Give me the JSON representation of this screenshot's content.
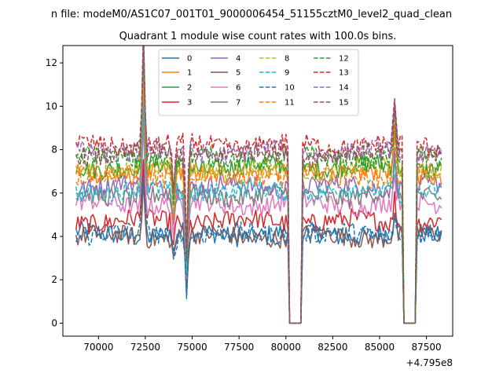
{
  "figure": {
    "suptitle": "n file: modeM0/AS1C07_001T01_9000006454_51155cztM0_level2_quad_clean"
  },
  "chart_data": {
    "type": "line",
    "title": "Quadrant 1 module wise count rates with 100.0s bins.",
    "xlabel": "",
    "ylabel": "",
    "x_offset_label": "+4.795e8",
    "xlim": [
      68100,
      88900
    ],
    "ylim": [
      -0.6,
      12.8
    ],
    "x_ticks": [
      70000,
      72500,
      75000,
      77500,
      80000,
      82500,
      85000,
      87500
    ],
    "y_ticks": [
      0,
      2,
      4,
      6,
      8,
      10,
      12
    ],
    "grid": false,
    "legend_placement": "upper-center",
    "legend_columns": 4,
    "x_start": 68800,
    "x_end": 88300,
    "bin_width": 100,
    "gaps": [
      {
        "from": 80200,
        "to": 80800
      },
      {
        "from": 86300,
        "to": 86900
      }
    ],
    "features": [
      {
        "x": 72400,
        "shift": 4.0
      },
      {
        "x": 74000,
        "shift": -1.5
      },
      {
        "x": 74700,
        "shift": -3.5
      },
      {
        "x": 85800,
        "shift": 1.5
      }
    ],
    "series": [
      {
        "name": "0",
        "color": "#1f77b4",
        "style": "solid",
        "level": 4.1
      },
      {
        "name": "1",
        "color": "#ff7f0e",
        "style": "solid",
        "level": 6.9
      },
      {
        "name": "2",
        "color": "#2ca02c",
        "style": "solid",
        "level": 7.2
      },
      {
        "name": "3",
        "color": "#d62728",
        "style": "solid",
        "level": 4.7
      },
      {
        "name": "4",
        "color": "#9467bd",
        "style": "solid",
        "level": 6.3
      },
      {
        "name": "5",
        "color": "#8c564b",
        "style": "solid",
        "level": 4.0
      },
      {
        "name": "6",
        "color": "#e377c2",
        "style": "solid",
        "level": 5.5
      },
      {
        "name": "7",
        "color": "#7f7f7f",
        "style": "solid",
        "level": 5.9
      },
      {
        "name": "8",
        "color": "#bcbd22",
        "style": "dashed",
        "level": 7.1
      },
      {
        "name": "9",
        "color": "#17becf",
        "style": "dashed",
        "level": 6.1
      },
      {
        "name": "10",
        "color": "#1f77b4",
        "style": "dashed",
        "level": 4.1
      },
      {
        "name": "11",
        "color": "#ff7f0e",
        "style": "dashed",
        "level": 6.8
      },
      {
        "name": "12",
        "color": "#2ca02c",
        "style": "dashed",
        "level": 7.6
      },
      {
        "name": "13",
        "color": "#d62728",
        "style": "dashed",
        "level": 8.2
      },
      {
        "name": "14",
        "color": "#9467bd",
        "style": "dashed",
        "level": 7.9
      },
      {
        "name": "15",
        "color": "#8c564b",
        "style": "dashed",
        "level": 7.8
      }
    ]
  }
}
